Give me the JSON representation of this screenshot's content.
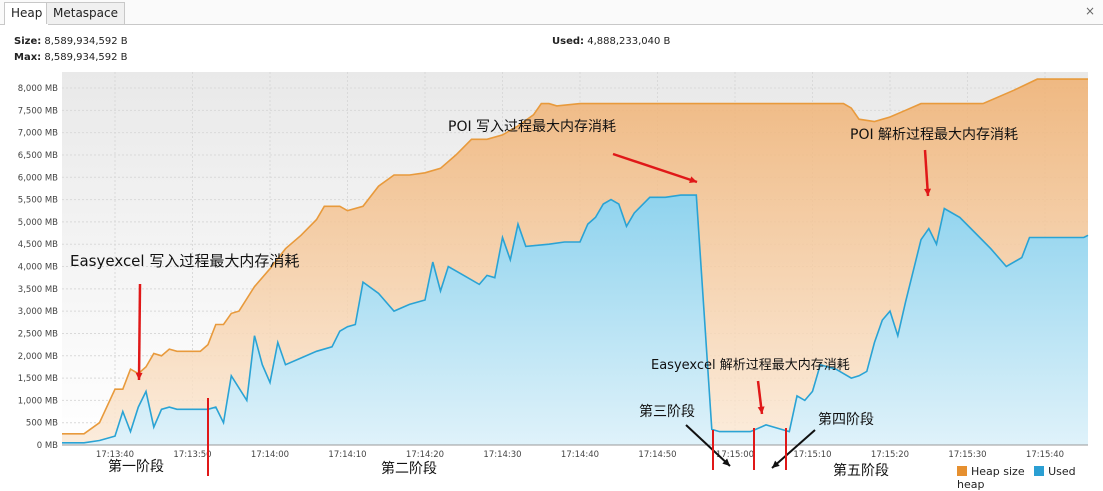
{
  "tabs": {
    "heap": "Heap",
    "metaspace": "Metaspace"
  },
  "close_symbol": "×",
  "stats": {
    "size_label": "Size:",
    "size_value": "8,589,934,592 B",
    "max_label": "Max:",
    "max_value": "8,589,934,592 B",
    "used_label": "Used:",
    "used_value": "4,888,233,040 B"
  },
  "legend": {
    "heap_size": "Heap size",
    "used_heap": "Used heap"
  },
  "colors": {
    "heap_size": "#f0a040",
    "used_heap": "#3aaed8"
  },
  "chart_data": {
    "type": "area",
    "yunit": "MB",
    "ylim": [
      0,
      8250
    ],
    "yticks": [
      "0 MB",
      "500 MB",
      "1,000 MB",
      "1,500 MB",
      "2,000 MB",
      "2,500 MB",
      "3,000 MB",
      "3,500 MB",
      "4,000 MB",
      "4,500 MB",
      "5,000 MB",
      "5,500 MB",
      "6,000 MB",
      "6,500 MB",
      "7,000 MB",
      "7,500 MB",
      "8,000 MB"
    ],
    "xticks": [
      "17:13:40",
      "17:13:50",
      "17:14:00",
      "17:14:10",
      "17:14:20",
      "17:14:30",
      "17:14:40",
      "17:14:50",
      "17:15:00",
      "17:15:10",
      "17:15:20",
      "17:15:30",
      "17:15:40"
    ],
    "x_start_seconds_offset": -7,
    "series": [
      {
        "name": "Heap size",
        "points": [
          [
            -7,
            250
          ],
          [
            -4,
            250
          ],
          [
            -2,
            500
          ],
          [
            0,
            1250
          ],
          [
            1,
            1250
          ],
          [
            2,
            1700
          ],
          [
            3,
            1600
          ],
          [
            4,
            1750
          ],
          [
            5,
            2050
          ],
          [
            6,
            2000
          ],
          [
            7,
            2150
          ],
          [
            8,
            2100
          ],
          [
            9,
            2100
          ],
          [
            10,
            2100
          ],
          [
            11,
            2100
          ],
          [
            12,
            2250
          ],
          [
            13,
            2700
          ],
          [
            14,
            2700
          ],
          [
            15,
            2950
          ],
          [
            16,
            3000
          ],
          [
            18,
            3550
          ],
          [
            20,
            3950
          ],
          [
            22,
            4400
          ],
          [
            24,
            4700
          ],
          [
            26,
            5050
          ],
          [
            27,
            5350
          ],
          [
            29,
            5350
          ],
          [
            30,
            5250
          ],
          [
            32,
            5350
          ],
          [
            34,
            5800
          ],
          [
            36,
            6050
          ],
          [
            38,
            6050
          ],
          [
            40,
            6100
          ],
          [
            42,
            6200
          ],
          [
            44,
            6500
          ],
          [
            46,
            6850
          ],
          [
            48,
            6850
          ],
          [
            50,
            6950
          ],
          [
            52,
            7150
          ],
          [
            54,
            7400
          ],
          [
            55,
            7650
          ],
          [
            56,
            7650
          ],
          [
            57,
            7600
          ],
          [
            60,
            7650
          ],
          [
            66,
            7650
          ],
          [
            72,
            7650
          ],
          [
            78,
            7650
          ],
          [
            86,
            7650
          ],
          [
            94,
            7650
          ],
          [
            95,
            7550
          ],
          [
            96,
            7300
          ],
          [
            98,
            7250
          ],
          [
            100,
            7350
          ],
          [
            102,
            7500
          ],
          [
            104,
            7650
          ],
          [
            108,
            7650
          ],
          [
            112,
            7650
          ],
          [
            116,
            7950
          ],
          [
            119,
            8200
          ],
          [
            125,
            8200
          ],
          [
            128,
            8200
          ]
        ]
      },
      {
        "name": "Used heap",
        "points": [
          [
            -7,
            50
          ],
          [
            -4,
            50
          ],
          [
            -2,
            100
          ],
          [
            0,
            200
          ],
          [
            1,
            750
          ],
          [
            2,
            300
          ],
          [
            3,
            850
          ],
          [
            4,
            1200
          ],
          [
            5,
            400
          ],
          [
            6,
            800
          ],
          [
            7,
            850
          ],
          [
            8,
            800
          ],
          [
            10,
            800
          ],
          [
            12,
            800
          ],
          [
            13,
            850
          ],
          [
            14,
            500
          ],
          [
            15,
            1550
          ],
          [
            17,
            1000
          ],
          [
            18,
            2450
          ],
          [
            19,
            1800
          ],
          [
            20,
            1400
          ],
          [
            21,
            2300
          ],
          [
            22,
            1800
          ],
          [
            24,
            1950
          ],
          [
            26,
            2100
          ],
          [
            28,
            2200
          ],
          [
            29,
            2550
          ],
          [
            30,
            2650
          ],
          [
            31,
            2700
          ],
          [
            32,
            3650
          ],
          [
            34,
            3400
          ],
          [
            36,
            3000
          ],
          [
            38,
            3150
          ],
          [
            40,
            3250
          ],
          [
            41,
            4100
          ],
          [
            42,
            3450
          ],
          [
            43,
            4000
          ],
          [
            45,
            3800
          ],
          [
            47,
            3600
          ],
          [
            48,
            3800
          ],
          [
            49,
            3750
          ],
          [
            50,
            4650
          ],
          [
            51,
            4150
          ],
          [
            52,
            4950
          ],
          [
            53,
            4450
          ],
          [
            56,
            4500
          ],
          [
            58,
            4550
          ],
          [
            60,
            4550
          ],
          [
            61,
            4950
          ],
          [
            62,
            5100
          ],
          [
            63,
            5400
          ],
          [
            64,
            5500
          ],
          [
            65,
            5400
          ],
          [
            66,
            4900
          ],
          [
            67,
            5200
          ],
          [
            69,
            5550
          ],
          [
            71,
            5550
          ],
          [
            73,
            5600
          ],
          [
            75,
            5600
          ],
          [
            76,
            3000
          ],
          [
            77,
            350
          ],
          [
            78,
            300
          ],
          [
            80,
            300
          ],
          [
            82,
            300
          ],
          [
            84,
            450
          ],
          [
            86,
            350
          ],
          [
            87,
            300
          ],
          [
            88,
            1100
          ],
          [
            89,
            1000
          ],
          [
            90,
            1200
          ],
          [
            91,
            1800
          ],
          [
            93,
            1700
          ],
          [
            95,
            1500
          ],
          [
            96,
            1550
          ],
          [
            97,
            1650
          ],
          [
            98,
            2300
          ],
          [
            99,
            2800
          ],
          [
            100,
            3000
          ],
          [
            101,
            2450
          ],
          [
            102,
            3200
          ],
          [
            104,
            4600
          ],
          [
            105,
            4850
          ],
          [
            106,
            4500
          ],
          [
            107,
            5300
          ],
          [
            109,
            5100
          ],
          [
            111,
            4750
          ],
          [
            113,
            4400
          ],
          [
            115,
            4000
          ],
          [
            117,
            4200
          ],
          [
            118,
            4650
          ],
          [
            122,
            4650
          ],
          [
            125,
            4650
          ],
          [
            128,
            4700
          ]
        ]
      }
    ],
    "annotations": [
      {
        "text": "Easyexcel 写入过程最大内存消耗"
      },
      {
        "text": "POI 写入过程最大内存消耗"
      },
      {
        "text": "POI 解析过程最大内存消耗"
      },
      {
        "text": "Easyexcel 解析过程最大内存消耗"
      },
      {
        "text": "第一阶段"
      },
      {
        "text": "第二阶段"
      },
      {
        "text": "第三阶段"
      },
      {
        "text": "第四阶段"
      },
      {
        "text": "第五阶段"
      }
    ]
  }
}
